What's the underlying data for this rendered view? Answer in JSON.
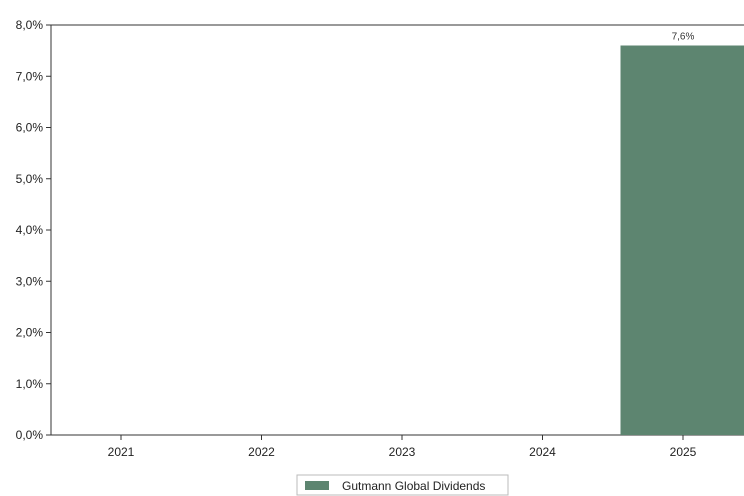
{
  "chart_data": {
    "type": "bar",
    "categories": [
      "2021",
      "2022",
      "2023",
      "2024",
      "2025"
    ],
    "series": [
      {
        "name": "Gutmann Global Dividends",
        "values": [
          null,
          null,
          null,
          null,
          7.6
        ],
        "color": "#5d8570"
      }
    ],
    "data_labels": [
      "",
      "",
      "",
      "",
      "7,6%"
    ],
    "y_ticks": [
      "0,0%",
      "1,0%",
      "2,0%",
      "3,0%",
      "4,0%",
      "5,0%",
      "6,0%",
      "7,0%",
      "8,0%"
    ],
    "ylim": [
      0,
      8
    ],
    "grid": false,
    "legend_position": "bottom-center"
  }
}
